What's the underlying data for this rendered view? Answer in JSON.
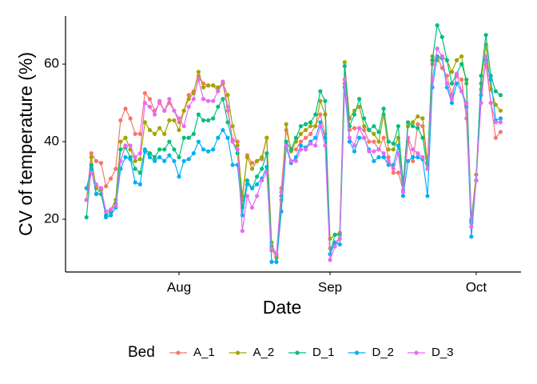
{
  "chart_data": {
    "type": "line",
    "xlabel": "Date",
    "ylabel": "CV of temperature (%)",
    "legend_title": "Bed",
    "legend": "bottom",
    "x": [
      12,
      13,
      14,
      15,
      16,
      17,
      18,
      19,
      20,
      21,
      22,
      23,
      24,
      25,
      26,
      27,
      28,
      29,
      30,
      31,
      32,
      33,
      34,
      35,
      36,
      37,
      38,
      39,
      40,
      41,
      42,
      43,
      44,
      45,
      46,
      47,
      48,
      49,
      50,
      51,
      52,
      53,
      54,
      55,
      56,
      57,
      58,
      59,
      60,
      61,
      62,
      63,
      64,
      65,
      66,
      67,
      68,
      69,
      70,
      71,
      72,
      73,
      74,
      75,
      76,
      77,
      78,
      79,
      80,
      81,
      82,
      83,
      84,
      85,
      86,
      87,
      88,
      89,
      90,
      91,
      92,
      93,
      94,
      95,
      96,
      97
    ],
    "xlim": [
      7.7,
      101.2
    ],
    "xticks": [
      {
        "value": 31,
        "label": "Aug"
      },
      {
        "value": 62,
        "label": "Sep"
      },
      {
        "value": 92,
        "label": "Oct"
      }
    ],
    "ylim": [
      6.4,
      72.4
    ],
    "yticks": [
      20,
      40,
      60
    ],
    "series": [
      {
        "name": "A_1",
        "color": "#F8766D",
        "values": [
          25,
          37,
          35,
          34.5,
          28.5,
          30.5,
          33,
          45.5,
          48.5,
          46,
          42,
          42,
          52.5,
          51,
          48,
          50,
          48,
          50,
          48,
          45,
          48,
          52,
          53,
          57,
          55,
          54.5,
          54.5,
          53,
          55,
          48,
          40.5,
          40,
          25,
          36.5,
          34.5,
          35,
          35.5,
          41,
          12,
          10.5,
          28,
          43,
          38,
          38,
          40,
          41,
          42,
          44,
          47,
          42,
          12.5,
          14,
          15,
          55,
          43,
          43.5,
          43.5,
          43,
          40,
          40,
          38,
          41,
          36,
          32,
          32,
          27.5,
          40,
          35,
          44.5,
          44,
          34,
          60,
          62,
          59,
          57,
          52,
          57,
          56,
          46,
          19,
          30,
          53.5,
          60,
          50,
          41,
          42.5
        ]
      },
      {
        "name": "A_2",
        "color": "#A3A500",
        "values": [
          25,
          36,
          28,
          27.5,
          22,
          22.5,
          25,
          40,
          41,
          38,
          35,
          35.5,
          45,
          43,
          42,
          43.5,
          42,
          45.5,
          45.5,
          43,
          48,
          51,
          52.5,
          58,
          54,
          54.5,
          54.5,
          54,
          55,
          52,
          44,
          39,
          26,
          36,
          33,
          35,
          36,
          41,
          14,
          10,
          25,
          44.5,
          37.5,
          40,
          42,
          43,
          44,
          44,
          50.5,
          47,
          15,
          16,
          16.5,
          60.5,
          46,
          48,
          49,
          44,
          43,
          42,
          40,
          47,
          38,
          38,
          41,
          29,
          44,
          45,
          46.5,
          46,
          34.5,
          62,
          61,
          62,
          61,
          58,
          61,
          62,
          55,
          20,
          31.5,
          55,
          65,
          53.5,
          49.5,
          48
        ]
      },
      {
        "name": "D_1",
        "color": "#00BF7D",
        "values": [
          20.5,
          34,
          26.5,
          26.5,
          21,
          22,
          24,
          38,
          38.5,
          36,
          33,
          32,
          38,
          37,
          36,
          38,
          38,
          40,
          38,
          36,
          41,
          41,
          42,
          47,
          45.5,
          45.5,
          46,
          49,
          51,
          45,
          40,
          37,
          23,
          30,
          28,
          31,
          33,
          37,
          13,
          11,
          26,
          40,
          38,
          41,
          44,
          44.5,
          45,
          47,
          53,
          50.5,
          11,
          16,
          16,
          59.5,
          44,
          47,
          51,
          46,
          43,
          44,
          42.5,
          48.5,
          40,
          39.5,
          44,
          29,
          45,
          44,
          43.5,
          41,
          33,
          61,
          70,
          67,
          61,
          55,
          57.5,
          60,
          56,
          19.5,
          30,
          57,
          67.5,
          57,
          53,
          52
        ]
      },
      {
        "name": "D_2",
        "color": "#00B0F6",
        "values": [
          28,
          33,
          26.5,
          28,
          20.5,
          21,
          23,
          33,
          36,
          35.5,
          29.5,
          29,
          37.5,
          36,
          35,
          36,
          35,
          36.5,
          35,
          31,
          35,
          35.5,
          37,
          40,
          38,
          37.5,
          38,
          41,
          43,
          41,
          34,
          34,
          21,
          29,
          28,
          29,
          30.5,
          33.5,
          9,
          9,
          22,
          38.5,
          34.5,
          36,
          39,
          38.5,
          40,
          41,
          45,
          41,
          11,
          14,
          13.5,
          54,
          40,
          37.5,
          41,
          41,
          38,
          35,
          36,
          36,
          34,
          34,
          39,
          26,
          35,
          36,
          36,
          35.5,
          26,
          54,
          62,
          61.5,
          54,
          50,
          55,
          53,
          49,
          15.5,
          30,
          52,
          61,
          56,
          45.5,
          46
        ]
      },
      {
        "name": "D_3",
        "color": "#E76BF3",
        "values": [
          25,
          32,
          29,
          28,
          22,
          22.5,
          23.5,
          35,
          39,
          39,
          36,
          37,
          50,
          49,
          47,
          50.5,
          48,
          51,
          48,
          46,
          44,
          49,
          51,
          56,
          51,
          50.5,
          50.5,
          53,
          55.5,
          49,
          40,
          38,
          17,
          26,
          23,
          26,
          30,
          32,
          12.5,
          11,
          27,
          39,
          35,
          35,
          38,
          38,
          39.5,
          39,
          44,
          39,
          9.5,
          13,
          15,
          56,
          41,
          39,
          43.5,
          41,
          37.5,
          37.5,
          38,
          37,
          35,
          33,
          37,
          27,
          41,
          38,
          37,
          36,
          33,
          56,
          64,
          62,
          55,
          51,
          57.5,
          53,
          50,
          18,
          30,
          50,
          62,
          50,
          45,
          45
        ]
      }
    ]
  }
}
